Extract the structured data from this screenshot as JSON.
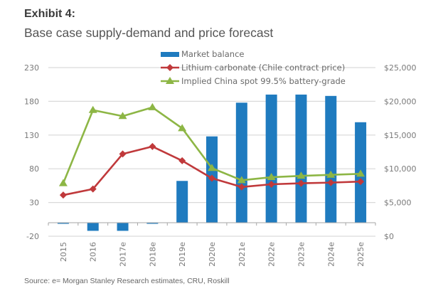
{
  "header": {
    "exhibit": "Exhibit 4:",
    "subtitle": "Base case supply-demand and price forecast"
  },
  "footer": {
    "source": "Source: e= Morgan Stanley Research estimates, CRU, Roskill"
  },
  "colors": {
    "bar": "#1f7bbf",
    "chile": "#c0393b",
    "china": "#8db645",
    "grid": "#d9d9d9",
    "axis": "#a6a6a6"
  },
  "chart_data": {
    "type": "bar",
    "title": "Base case supply-demand and price forecast",
    "categories": [
      "2015",
      "2016",
      "2017e",
      "2018e",
      "2019e",
      "2020e",
      "2021e",
      "2022e",
      "2023e",
      "2024e",
      "2025e"
    ],
    "left_axis": {
      "label": "",
      "range": [
        -20,
        230
      ],
      "ticks": [
        -20,
        30,
        80,
        130,
        180,
        230
      ],
      "tick_labels": [
        "-20",
        "30",
        "80",
        "130",
        "180",
        "230"
      ]
    },
    "right_axis": {
      "label": "",
      "range": [
        0,
        25000
      ],
      "ticks": [
        0,
        5000,
        10000,
        15000,
        20000,
        25000
      ],
      "tick_labels": [
        "$0",
        "$5,000",
        "$10,000",
        "$15,000",
        "$20,000",
        "$25,000"
      ]
    },
    "grid": true,
    "legend_position": "top-center",
    "series": [
      {
        "name": "Market balance",
        "type": "bar",
        "axis": "left",
        "values": [
          -1,
          -12,
          -12,
          -1,
          62,
          128,
          178,
          190,
          190,
          188,
          149
        ]
      },
      {
        "name": "Lithium carbonate (Chile contract price)",
        "type": "line",
        "marker": "diamond",
        "axis": "right",
        "values": [
          6100,
          7000,
          12200,
          13300,
          11200,
          8600,
          7300,
          7700,
          7850,
          7950,
          8100
        ]
      },
      {
        "name": "Implied China spot 99.5% battery-grade",
        "type": "line",
        "marker": "triangle",
        "axis": "right",
        "values": [
          7850,
          18700,
          17800,
          19100,
          16000,
          10100,
          8300,
          8750,
          8950,
          9100,
          9250
        ]
      }
    ]
  }
}
